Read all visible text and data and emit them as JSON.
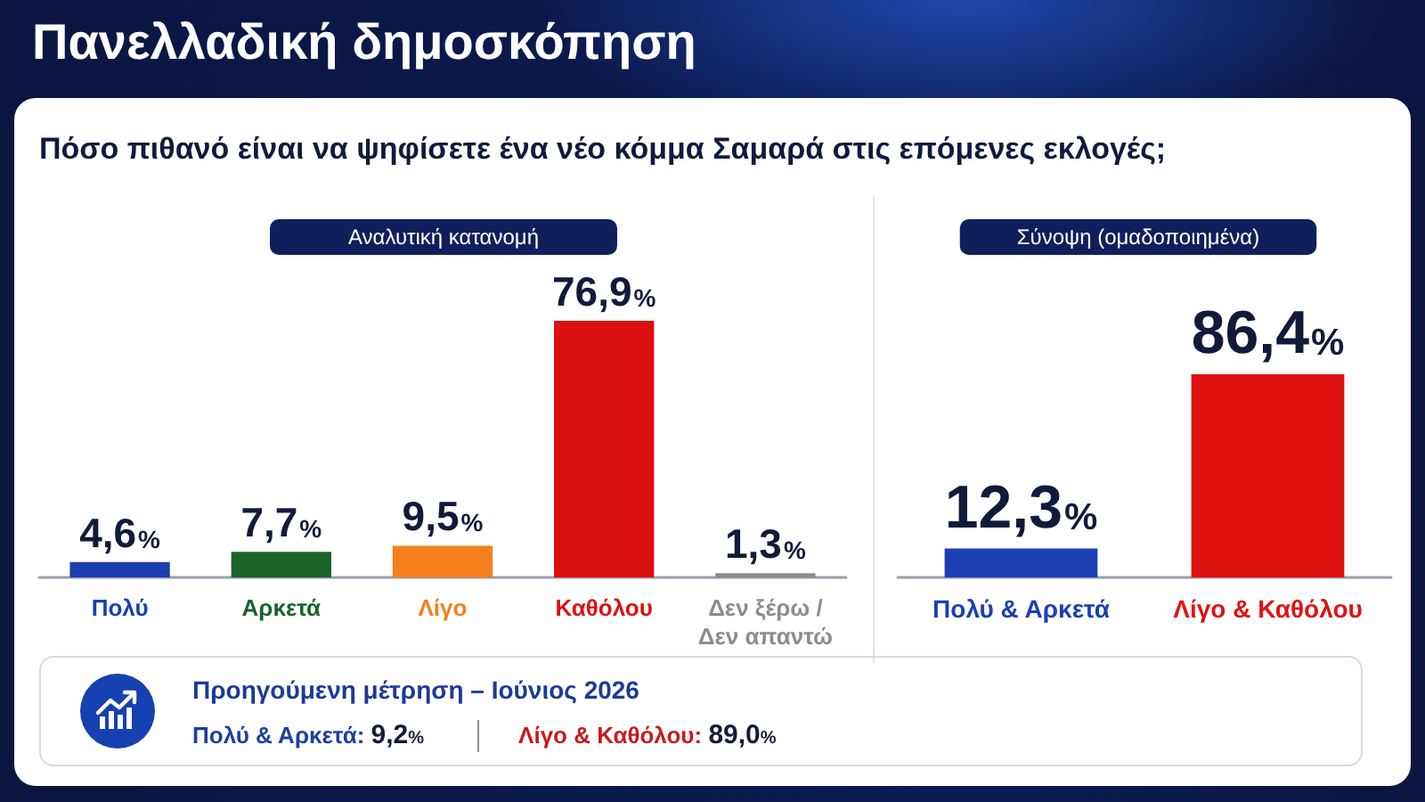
{
  "chart_data": [
    {
      "type": "other",
      "title": "Πανελλαδική δημοσκόπηση",
      "subtitle": "Πόσο πιθανό είναι να ψηφίσετε ένα νέο κόμμα Σαμαρά στις επόμενες εκλογές;"
    },
    {
      "type": "bar",
      "title": "Αναλυτική κατανομή",
      "categories": [
        "Πολύ",
        "Αρκετά",
        "Λίγο",
        "Καθόλου",
        "Δεν ξέρω / Δεν απαντώ"
      ],
      "values": [
        4.6,
        7.7,
        9.5,
        76.9,
        1.3
      ],
      "value_labels": [
        "4,6%",
        "7,7%",
        "9,5%",
        "76,9%",
        "1,3%"
      ],
      "colors": [
        "#1b3fae",
        "#1c6329",
        "#f47f1c",
        "#dc1010",
        "#8c8c8c"
      ]
    },
    {
      "type": "bar",
      "title": "Σύνοψη (ομαδοποιημένα)",
      "categories": [
        "Πολύ & Αρκετά",
        "Λίγο & Καθόλου"
      ],
      "values": [
        12.3,
        86.4
      ],
      "value_labels": [
        "12,3%",
        "86,4%"
      ],
      "colors": [
        "#1c40b4",
        "#e01212"
      ]
    },
    {
      "type": "other",
      "title": "Προηγούμενη μέτρηση – Ιούνιος 2026",
      "annotations": [
        "Πολύ & Αρκετά: 9,2%",
        "Λίγο & Καθόλου: 89,0%"
      ]
    }
  ]
}
